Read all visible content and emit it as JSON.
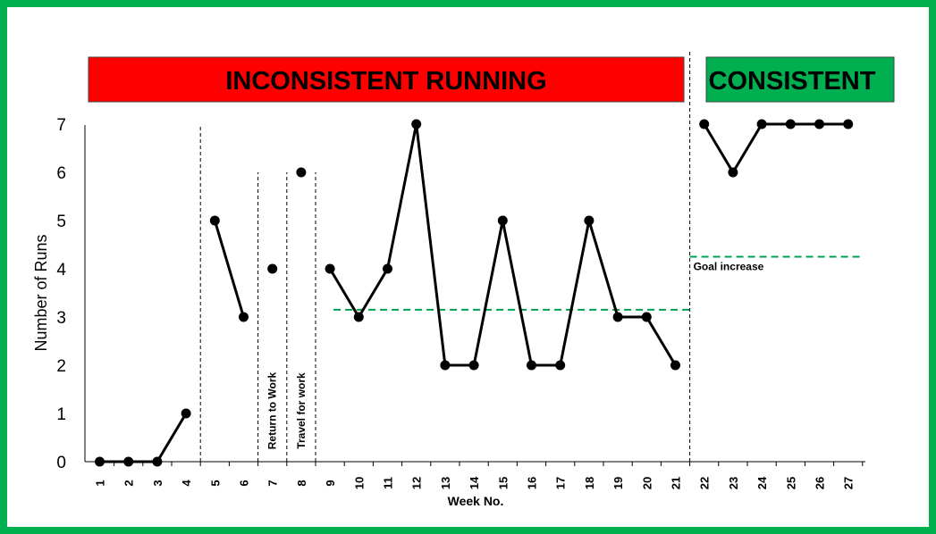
{
  "banners": {
    "inconsistent": {
      "label": "INCONSISTENT RUNNING",
      "color": "#ff0000"
    },
    "consistent": {
      "label": "CONSISTENT",
      "color": "#00b050"
    }
  },
  "colors": {
    "frame": "#00b050",
    "line": "#000000",
    "goal_line": "#00a050"
  },
  "chart_data": {
    "type": "line",
    "title": "",
    "xlabel": "Week No.",
    "ylabel": "Number of Runs",
    "ylim": [
      0,
      7
    ],
    "yticks": [
      0,
      1,
      2,
      3,
      4,
      5,
      6,
      7
    ],
    "categories": [
      "1",
      "2",
      "3",
      "4",
      "5",
      "6",
      "7",
      "8",
      "9",
      "10",
      "11",
      "12",
      "13",
      "14",
      "15",
      "16",
      "17",
      "18",
      "19",
      "20",
      "21",
      "22",
      "23",
      "24",
      "25",
      "26",
      "27"
    ],
    "values": [
      0,
      0,
      0,
      1,
      5,
      3,
      4,
      6,
      4,
      3,
      4,
      7,
      2,
      2,
      5,
      2,
      2,
      5,
      3,
      3,
      2,
      7,
      6,
      7,
      7,
      7,
      7
    ],
    "segments": [
      {
        "from_week": 1,
        "to_week": 4
      },
      {
        "from_week": 5,
        "to_week": 6
      },
      {
        "from_week": 7,
        "to_week": 7
      },
      {
        "from_week": 8,
        "to_week": 8
      },
      {
        "from_week": 9,
        "to_week": 21
      },
      {
        "from_week": 22,
        "to_week": 27
      }
    ],
    "phase_dividers": [
      {
        "after_week": 4,
        "height": 7
      },
      {
        "after_week": 6,
        "height": 6
      },
      {
        "after_week": 7,
        "height": 6
      },
      {
        "after_week": 8,
        "height": 6
      },
      {
        "after_week": 21,
        "height": 8.5
      }
    ],
    "annotations": [
      {
        "text": "Return to Work",
        "week": 7
      },
      {
        "text": "Travel for work",
        "week": 8
      }
    ],
    "reference_lines": [
      {
        "label": "",
        "y": 3.15,
        "from_week": 9,
        "to_week": 21
      },
      {
        "label": "Goal increase",
        "y": 4.25,
        "from_week": 22,
        "to_week": 27
      }
    ],
    "grid": false,
    "legend": "none"
  }
}
